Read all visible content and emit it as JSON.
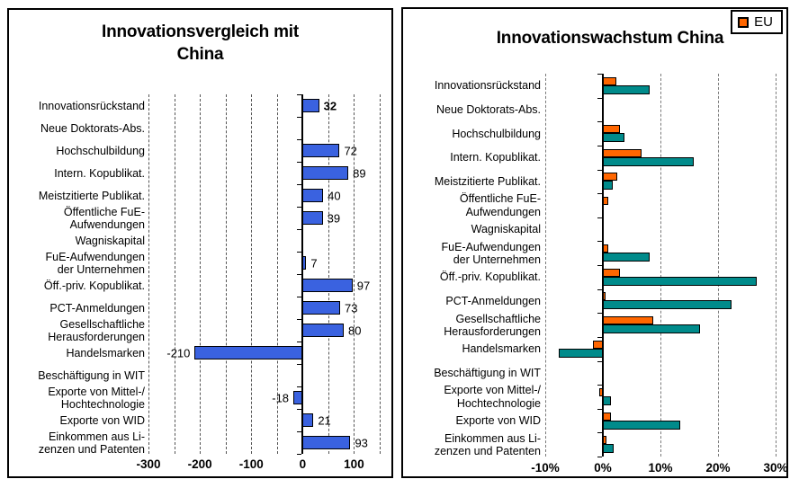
{
  "figure": {
    "background": "#ffffff",
    "border_color": "#000000"
  },
  "chart_data": [
    {
      "type": "bar",
      "orientation": "horizontal",
      "title": "Innovationsvergleich mit\nChina",
      "bar_color": "#3A62E0",
      "xlim": [
        -300,
        150
      ],
      "grid_step": 50,
      "grid_on": true,
      "ticks": [
        {
          "value": -300,
          "label": "-300"
        },
        {
          "value": -200,
          "label": "-200"
        },
        {
          "value": -100,
          "label": "-100"
        },
        {
          "value": 0,
          "label": "0"
        },
        {
          "value": 100,
          "label": "100"
        }
      ],
      "rows": [
        {
          "label": "Innovationsrückstand",
          "value": 32,
          "value_label": "32",
          "bold": true
        },
        {
          "label": "Neue Doktorats-Abs.",
          "value": null,
          "value_label": ""
        },
        {
          "label": "Hochschulbildung",
          "value": 72,
          "value_label": "72"
        },
        {
          "label": "Intern. Kopublikat.",
          "value": 89,
          "value_label": "89"
        },
        {
          "label": "Meistzitierte Publikat.",
          "value": 40,
          "value_label": "40"
        },
        {
          "label": "Öffentliche FuE-\nAufwendungen",
          "value": 39,
          "value_label": "39"
        },
        {
          "label": "Wagniskapital",
          "value": null,
          "value_label": ""
        },
        {
          "label": "FuE-Aufwendungen\nder Unternehmen",
          "value": 7,
          "value_label": "7"
        },
        {
          "label": "Öff.-priv. Kopublikat.",
          "value": 97,
          "value_label": "97"
        },
        {
          "label": "PCT-Anmeldungen",
          "value": 73,
          "value_label": "73"
        },
        {
          "label": "Gesellschaftliche\nHerausforderungen",
          "value": 80,
          "value_label": "80"
        },
        {
          "label": "Handelsmarken",
          "value": -210,
          "value_label": "-210"
        },
        {
          "label": "Beschäftigung in WIT",
          "value": null,
          "value_label": ""
        },
        {
          "label": "Exporte von Mittel-/\nHochtechnologie",
          "value": -18,
          "value_label": "-18"
        },
        {
          "label": "Exporte von WID",
          "value": 21,
          "value_label": "21"
        },
        {
          "label": "Einkommen aus Li-\nzenzen und Patenten",
          "value": 93,
          "value_label": "93"
        }
      ]
    },
    {
      "type": "bar",
      "orientation": "horizontal",
      "title": "Innovationswachstum China",
      "xlim": [
        -10,
        30
      ],
      "grid_step": 10,
      "grid_on": true,
      "unit": "%",
      "legend": [
        {
          "label": "EU",
          "color": "#FF6600"
        }
      ],
      "legend_position": "top-right",
      "series": [
        {
          "name": "EU",
          "color": "#FF6600"
        },
        {
          "name": "China",
          "color": "#008B8B"
        }
      ],
      "ticks": [
        {
          "value": -10,
          "label": "-10%"
        },
        {
          "value": 0,
          "label": "0%"
        },
        {
          "value": 10,
          "label": "10%"
        },
        {
          "value": 20,
          "label": "20%"
        },
        {
          "value": 30,
          "label": "30%"
        }
      ],
      "rows": [
        {
          "label": "Innovationsrückstand",
          "values": [
            2.3,
            8.1
          ]
        },
        {
          "label": "Neue Doktorats-Abs.",
          "values": [
            0,
            0
          ]
        },
        {
          "label": "Hochschulbildung",
          "values": [
            2.9,
            3.8
          ]
        },
        {
          "label": "Intern. Kopublikat.",
          "values": [
            6.7,
            15.8
          ]
        },
        {
          "label": "Meistzitierte Publikat.",
          "values": [
            2.5,
            1.7
          ]
        },
        {
          "label": "Öffentliche FuE-\nAufwendungen",
          "values": [
            1.0,
            0
          ]
        },
        {
          "label": "Wagniskapital",
          "values": [
            0,
            0
          ]
        },
        {
          "label": "FuE-Aufwendungen\nder Unternehmen",
          "values": [
            0.9,
            8.1
          ]
        },
        {
          "label": "Öff.-priv. Kopublikat.",
          "values": [
            3.0,
            26.7
          ]
        },
        {
          "label": "PCT-Anmeldungen",
          "values": [
            0.5,
            22.3
          ]
        },
        {
          "label": "Gesellschaftliche\nHerausforderungen",
          "values": [
            8.8,
            16.9
          ]
        },
        {
          "label": "Handelsmarken",
          "values": [
            -1.7,
            -7.7
          ]
        },
        {
          "label": "Beschäftigung in WIT",
          "values": [
            0,
            0
          ]
        },
        {
          "label": "Exporte von Mittel-/\nHochtechnologie",
          "values": [
            -0.6,
            1.4
          ]
        },
        {
          "label": "Exporte von WID",
          "values": [
            1.4,
            13.4
          ]
        },
        {
          "label": "Einkommen aus Li-\nzenzen und Patenten",
          "values": [
            0.6,
            1.9
          ]
        }
      ]
    }
  ]
}
